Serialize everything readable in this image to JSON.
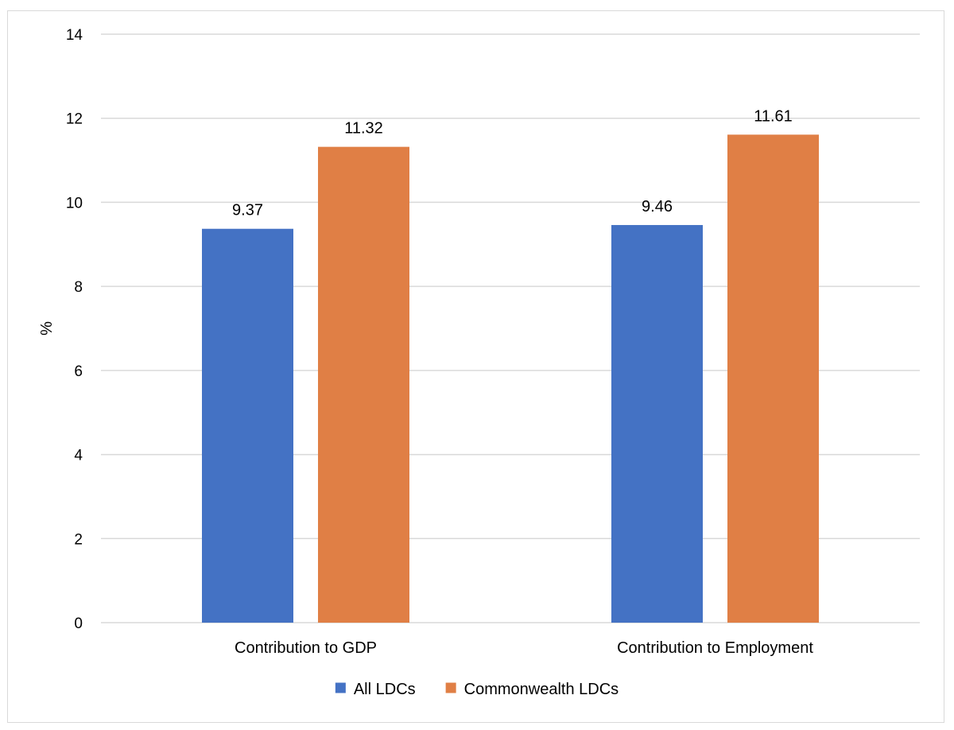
{
  "chart_data": {
    "type": "bar",
    "title": "",
    "xlabel": "",
    "ylabel": "%",
    "ylim": [
      0,
      14
    ],
    "yticks": [
      0,
      2,
      4,
      6,
      8,
      10,
      12,
      14
    ],
    "grid": true,
    "legend_position": "bottom",
    "categories": [
      "Contribution to GDP",
      "Contribution to Employment"
    ],
    "series": [
      {
        "name": "All LDCs",
        "color": "#4472c4",
        "values": [
          9.37,
          9.46
        ]
      },
      {
        "name": "Commonwealth LDCs",
        "color": "#e07f45",
        "values": [
          11.32,
          11.61
        ]
      }
    ],
    "data_labels": [
      [
        "9.37",
        "9.46"
      ],
      [
        "11.32",
        "11.61"
      ]
    ]
  }
}
